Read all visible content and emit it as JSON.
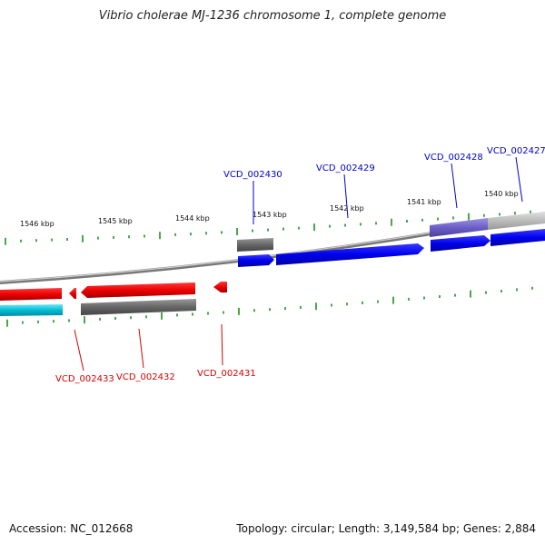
{
  "title": "Vibrio cholerae MJ-1236 chromosome 1, complete genome",
  "footer": {
    "accession": "Accession: NC_012668",
    "stats": "Topology: circular; Length: 3,149,584 bp; Genes: 2,884"
  },
  "scale": {
    "labels": [
      "1546 kbp",
      "1545 kbp",
      "1544 kbp",
      "1543 kbp",
      "1542 kbp",
      "1541 kbp",
      "1540 kbp"
    ]
  },
  "genes_forward": [
    {
      "label": "VCD_002430",
      "color": "#0000ee"
    },
    {
      "label": "VCD_002429",
      "color": "#0000ee"
    },
    {
      "label": "VCD_002428",
      "color": "#0000ee"
    },
    {
      "label": "VCD_002427",
      "color": "#0000ee"
    }
  ],
  "genes_reverse": [
    {
      "label": "VCD_002433",
      "color": "#ee0000"
    },
    {
      "label": "VCD_002432",
      "color": "#ee0000"
    },
    {
      "label": "VCD_002431",
      "color": "#ee0000"
    }
  ],
  "colors": {
    "forward_cds": "#0000ee",
    "reverse_cds": "#ee0000",
    "backbone": "#888888",
    "ticks": "#008000",
    "reverse_feature": "#00bcd4",
    "feature_gray": "#666666",
    "feature_purple": "#6b5fc7",
    "feature_lightgray": "#bbbbbb"
  }
}
